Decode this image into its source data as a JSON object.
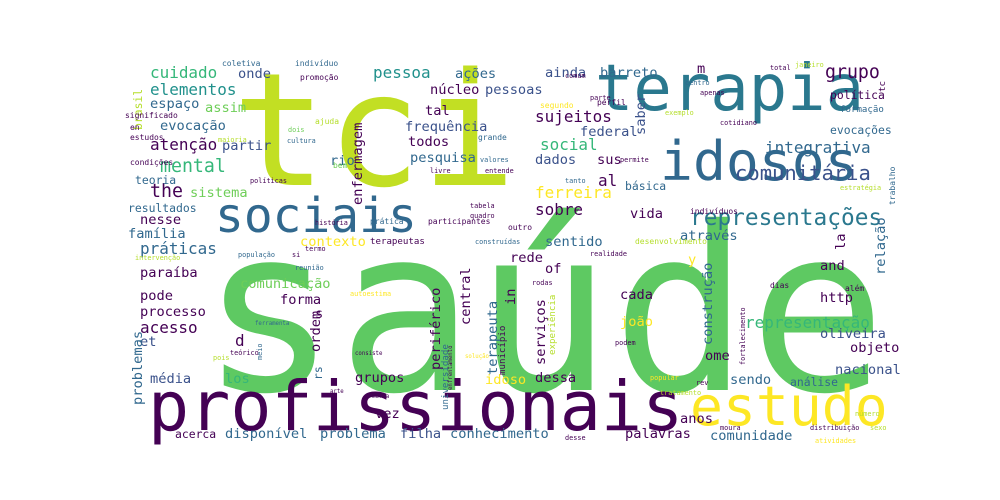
{
  "chart_data": {
    "type": "wordcloud",
    "words": [
      {
        "text": "saúde",
        "weight": 100,
        "color": "#5ec962"
      },
      {
        "text": "profissionais",
        "weight": 30,
        "color": "#440154"
      },
      {
        "text": "tci",
        "weight": 69,
        "color": "#c2df23"
      },
      {
        "text": "terapia",
        "weight": 28,
        "color": "#2a788e"
      },
      {
        "text": "idosos",
        "weight": 24,
        "color": "#31688e"
      },
      {
        "text": "sociais",
        "weight": 21,
        "color": "#31688e"
      },
      {
        "text": "estudo",
        "weight": 24,
        "color": "#fde725"
      },
      {
        "text": "representações",
        "weight": 10,
        "color": "#2a788e"
      },
      {
        "text": "comunitária",
        "weight": 9,
        "color": "#3b528b"
      },
      {
        "text": "integrativa",
        "weight": 7,
        "color": "#31688e"
      },
      {
        "text": "grupo",
        "weight": 8,
        "color": "#440154"
      },
      {
        "text": "cuidado",
        "weight": 7,
        "color": "#35b779"
      },
      {
        "text": "elementos",
        "weight": 7,
        "color": "#21918c"
      },
      {
        "text": "pessoa",
        "weight": 7,
        "color": "#21918c"
      },
      {
        "text": "ações",
        "weight": 6,
        "color": "#31688e"
      },
      {
        "text": "ainda",
        "weight": 6,
        "color": "#3b528b"
      },
      {
        "text": "barreto",
        "weight": 6,
        "color": "#31688e"
      },
      {
        "text": "m",
        "weight": 6,
        "color": "#440154"
      },
      {
        "text": "núcleo",
        "weight": 6,
        "color": "#440154"
      },
      {
        "text": "pessoas",
        "weight": 6,
        "color": "#3b528b"
      },
      {
        "text": "espaço",
        "weight": 6,
        "color": "#31688e"
      },
      {
        "text": "assim",
        "weight": 6,
        "color": "#6ece58"
      },
      {
        "text": "evocação",
        "weight": 6,
        "color": "#31688e"
      },
      {
        "text": "atenção",
        "weight": 7,
        "color": "#440154"
      },
      {
        "text": "partir",
        "weight": 6,
        "color": "#3b528b"
      },
      {
        "text": "mental",
        "weight": 8,
        "color": "#35b779"
      },
      {
        "text": "the",
        "weight": 8,
        "color": "#440154"
      },
      {
        "text": "teoria",
        "weight": 5,
        "color": "#31688e"
      },
      {
        "text": "sistema",
        "weight": 6,
        "color": "#6ece58"
      },
      {
        "text": "resultados",
        "weight": 5,
        "color": "#31688e"
      },
      {
        "text": "nesse",
        "weight": 6,
        "color": "#440154"
      },
      {
        "text": "família",
        "weight": 6,
        "color": "#31688e"
      },
      {
        "text": "práticas",
        "weight": 7,
        "color": "#31688e"
      },
      {
        "text": "paraíba",
        "weight": 6,
        "color": "#440154"
      },
      {
        "text": "pode",
        "weight": 6,
        "color": "#440154"
      },
      {
        "text": "processo",
        "weight": 6,
        "color": "#440154"
      },
      {
        "text": "acesso",
        "weight": 7,
        "color": "#440154"
      },
      {
        "text": "et",
        "weight": 6,
        "color": "#3b528b"
      },
      {
        "text": "média",
        "weight": 6,
        "color": "#3b528b"
      },
      {
        "text": "acerca",
        "weight": 5,
        "color": "#440154"
      },
      {
        "text": "disponível",
        "weight": 6,
        "color": "#31688e"
      },
      {
        "text": "problema",
        "weight": 6,
        "color": "#31688e"
      },
      {
        "text": "filha",
        "weight": 6,
        "color": "#3b528b"
      },
      {
        "text": "conhecimento",
        "weight": 6,
        "color": "#31688e"
      },
      {
        "text": "palavras",
        "weight": 6,
        "color": "#440154"
      },
      {
        "text": "comunidade",
        "weight": 6,
        "color": "#31688e"
      },
      {
        "text": "anos",
        "weight": 6,
        "color": "#440154"
      },
      {
        "text": "los",
        "weight": 6,
        "color": "#35b779"
      },
      {
        "text": "d",
        "weight": 7,
        "color": "#440154"
      },
      {
        "text": "grupos",
        "weight": 6,
        "color": "#440154"
      },
      {
        "text": "idoso",
        "weight": 6,
        "color": "#fde725"
      },
      {
        "text": "dessa",
        "weight": 6,
        "color": "#440154"
      },
      {
        "text": "nacional",
        "weight": 6,
        "color": "#3b528b"
      },
      {
        "text": "objeto",
        "weight": 6,
        "color": "#440154"
      },
      {
        "text": "oliveira",
        "weight": 6,
        "color": "#3b528b"
      },
      {
        "text": "representação",
        "weight": 7,
        "color": "#35b779"
      },
      {
        "text": "http",
        "weight": 6,
        "color": "#440154"
      },
      {
        "text": "and",
        "weight": 6,
        "color": "#440154"
      },
      {
        "text": "cada",
        "weight": 6,
        "color": "#440154"
      },
      {
        "text": "joão",
        "weight": 6,
        "color": "#fde725"
      },
      {
        "text": "sendo",
        "weight": 6,
        "color": "#31688e"
      },
      {
        "text": "análise",
        "weight": 5,
        "color": "#31688e"
      },
      {
        "text": "ome",
        "weight": 6,
        "color": "#440154"
      },
      {
        "text": "forma",
        "weight": 6,
        "color": "#440154"
      },
      {
        "text": "comunicação",
        "weight": 6,
        "color": "#6ece58"
      },
      {
        "text": "vez",
        "weight": 6,
        "color": "#440154"
      },
      {
        "text": "frequência",
        "weight": 6,
        "color": "#3b528b"
      },
      {
        "text": "todos",
        "weight": 6,
        "color": "#440154"
      },
      {
        "text": "pesquisa",
        "weight": 6,
        "color": "#31688e"
      },
      {
        "text": "sujeitos",
        "weight": 7,
        "color": "#440154"
      },
      {
        "text": "social",
        "weight": 7,
        "color": "#35b779"
      },
      {
        "text": "federal",
        "weight": 6,
        "color": "#3b528b"
      },
      {
        "text": "dados",
        "weight": 6,
        "color": "#3b528b"
      },
      {
        "text": "sus",
        "weight": 6,
        "color": "#440154"
      },
      {
        "text": "al",
        "weight": 7,
        "color": "#440154"
      },
      {
        "text": "básica",
        "weight": 5,
        "color": "#31688e"
      },
      {
        "text": "ferreira",
        "weight": 7,
        "color": "#fde725"
      },
      {
        "text": "sobre",
        "weight": 7,
        "color": "#440154"
      },
      {
        "text": "vida",
        "weight": 6,
        "color": "#440154"
      },
      {
        "text": "sentido",
        "weight": 6,
        "color": "#31688e"
      },
      {
        "text": "através",
        "weight": 6,
        "color": "#31688e"
      },
      {
        "text": "contexto",
        "weight": 6,
        "color": "#fde725"
      },
      {
        "text": "terapeutas",
        "weight": 4,
        "color": "#440154"
      },
      {
        "text": "rede",
        "weight": 6,
        "color": "#440154"
      },
      {
        "text": "of",
        "weight": 6,
        "color": "#440154"
      },
      {
        "text": "rio",
        "weight": 6,
        "color": "#31688e"
      },
      {
        "text": "onde",
        "weight": 6,
        "color": "#3b528b"
      },
      {
        "text": "tal",
        "weight": 6,
        "color": "#440154"
      },
      {
        "text": "política",
        "weight": 5,
        "color": "#440154"
      },
      {
        "text": "formação",
        "weight": 4,
        "color": "#31688e"
      },
      {
        "text": "evocações",
        "weight": 5,
        "color": "#31688e"
      },
      {
        "text": "s",
        "weight": 6,
        "color": "#440154"
      },
      {
        "text": "y",
        "weight": 6,
        "color": "#fde725"
      },
      {
        "text": "enfermagem",
        "weight": 6,
        "color": "#440154"
      },
      {
        "text": "brasil",
        "weight": 5,
        "color": "#b5de2b"
      },
      {
        "text": "problemas",
        "weight": 6,
        "color": "#31688e"
      },
      {
        "text": "ordem",
        "weight": 6,
        "color": "#440154"
      },
      {
        "text": "rs",
        "weight": 5,
        "color": "#31688e"
      },
      {
        "text": "la",
        "weight": 6,
        "color": "#440154"
      },
      {
        "text": "relação",
        "weight": 6,
        "color": "#31688e"
      },
      {
        "text": "saber",
        "weight": 6,
        "color": "#3b528b"
      },
      {
        "text": "tc",
        "weight": 4,
        "color": "#440154"
      },
      {
        "text": "in",
        "weight": 6,
        "color": "#440154"
      },
      {
        "text": "terapeuta",
        "weight": 6,
        "color": "#31688e"
      },
      {
        "text": "central",
        "weight": 6,
        "color": "#440154"
      },
      {
        "text": "periférico",
        "weight": 6,
        "color": "#440154"
      },
      {
        "text": "construção",
        "weight": 6,
        "color": "#31688e"
      },
      {
        "text": "serviços",
        "weight": 6,
        "color": "#440154"
      },
      {
        "text": "universidade",
        "weight": 4,
        "color": "#31688e"
      },
      {
        "text": "município",
        "weight": 4,
        "color": "#440154"
      },
      {
        "text": "experiência",
        "weight": 4,
        "color": "#b5de2b"
      },
      {
        "text": "coletiva",
        "weight": 3.5,
        "color": "#31688e"
      },
      {
        "text": "indivíduo",
        "weight": 3.5,
        "color": "#31688e"
      },
      {
        "text": "promoção",
        "weight": 3.5,
        "color": "#440154"
      },
      {
        "text": "total",
        "weight": 3,
        "color": "#440154"
      },
      {
        "text": "janeiro",
        "weight": 3,
        "color": "#b5de2b"
      },
      {
        "text": "significado",
        "weight": 3.5,
        "color": "#440154"
      },
      {
        "text": "en",
        "weight": 3.5,
        "color": "#440154"
      },
      {
        "text": "estudos",
        "weight": 3.5,
        "color": "#440154"
      },
      {
        "text": "condições",
        "weight": 3.5,
        "color": "#440154"
      },
      {
        "text": "maioria",
        "weight": 3,
        "color": "#b5de2b"
      },
      {
        "text": "dois",
        "weight": 3,
        "color": "#6ece58"
      },
      {
        "text": "cultura",
        "weight": 3,
        "color": "#31688e"
      },
      {
        "text": "ajuda",
        "weight": 3.5,
        "color": "#b5de2b"
      },
      {
        "text": "bem",
        "weight": 3.5,
        "color": "#6ece58"
      },
      {
        "text": "políticas",
        "weight": 3,
        "color": "#440154"
      },
      {
        "text": "história",
        "weight": 3,
        "color": "#440154"
      },
      {
        "text": "prática",
        "weight": 3.5,
        "color": "#31688e"
      },
      {
        "text": "participantes",
        "weight": 3.5,
        "color": "#440154"
      },
      {
        "text": "indivíduos",
        "weight": 3.5,
        "color": "#440154"
      },
      {
        "text": "tabela",
        "weight": 3,
        "color": "#440154"
      },
      {
        "text": "quadro",
        "weight": 3,
        "color": "#440154"
      },
      {
        "text": "termo",
        "weight": 3,
        "color": "#440154"
      },
      {
        "text": "população",
        "weight": 3,
        "color": "#31688e"
      },
      {
        "text": "si",
        "weight": 3,
        "color": "#440154"
      },
      {
        "text": "intervenção",
        "weight": 3,
        "color": "#b5de2b"
      },
      {
        "text": "reunião",
        "weight": 3,
        "color": "#31688e"
      },
      {
        "text": "teórico",
        "weight": 3,
        "color": "#440154"
      },
      {
        "text": "pois",
        "weight": 3,
        "color": "#b5de2b"
      },
      {
        "text": "meio",
        "weight": 3,
        "color": "#31688e"
      },
      {
        "text": "consiste",
        "weight": 2.5,
        "color": "#440154"
      },
      {
        "text": "solução",
        "weight": 2.5,
        "color": "#fde725"
      },
      {
        "text": "arte",
        "weight": 2.5,
        "color": "#440154"
      },
      {
        "text": "maria",
        "weight": 2.5,
        "color": "#440154"
      },
      {
        "text": "popular",
        "weight": 3,
        "color": "#fde725"
      },
      {
        "text": "rev",
        "weight": 3,
        "color": "#440154"
      },
      {
        "text": "moura",
        "weight": 3,
        "color": "#440154"
      },
      {
        "text": "atividades",
        "weight": 3,
        "color": "#fde725"
      },
      {
        "text": "sexo",
        "weight": 3,
        "color": "#b5de2b"
      },
      {
        "text": "número",
        "weight": 3,
        "color": "#b5de2b"
      },
      {
        "text": "dias",
        "weight": 3.5,
        "color": "#440154"
      },
      {
        "text": "além",
        "weight": 3.5,
        "color": "#440154"
      },
      {
        "text": "realidade",
        "weight": 3,
        "color": "#440154"
      },
      {
        "text": "desenvolvimento",
        "weight": 3.5,
        "color": "#b5de2b"
      },
      {
        "text": "outro",
        "weight": 3.5,
        "color": "#440154"
      },
      {
        "text": "rodas",
        "weight": 3,
        "color": "#440154"
      },
      {
        "text": "autoestima",
        "weight": 3,
        "color": "#fde725"
      },
      {
        "text": "ferramenta",
        "weight": 2.5,
        "color": "#31688e"
      },
      {
        "text": "construídas",
        "weight": 3,
        "color": "#31688e"
      },
      {
        "text": "comum",
        "weight": 3,
        "color": "#440154"
      },
      {
        "text": "apenas",
        "weight": 3,
        "color": "#440154"
      },
      {
        "text": "parte",
        "weight": 3,
        "color": "#440154"
      },
      {
        "text": "cotidiano",
        "weight": 3,
        "color": "#440154"
      },
      {
        "text": "permite",
        "weight": 3,
        "color": "#440154"
      },
      {
        "text": "tanto",
        "weight": 3,
        "color": "#31688e"
      },
      {
        "text": "entende",
        "weight": 3,
        "color": "#440154"
      },
      {
        "text": "livre",
        "weight": 3,
        "color": "#440154"
      },
      {
        "text": "valores",
        "weight": 3,
        "color": "#31688e"
      },
      {
        "text": "grande",
        "weight": 3.5,
        "color": "#31688e"
      },
      {
        "text": "segundo",
        "weight": 3.5,
        "color": "#fde725"
      },
      {
        "text": "perfil",
        "weight": 3.5,
        "color": "#440154"
      },
      {
        "text": "centro",
        "weight": 3,
        "color": "#31688e"
      },
      {
        "text": "exemplo",
        "weight": 3,
        "color": "#b5de2b"
      },
      {
        "text": "trabalho",
        "weight": 3.5,
        "color": "#31688e"
      },
      {
        "text": "estratégia",
        "weight": 3,
        "color": "#b5de2b"
      },
      {
        "text": "fortalecimento",
        "weight": 3,
        "color": "#440154"
      },
      {
        "text": "distribuição",
        "weight": 3,
        "color": "#440154"
      },
      {
        "text": "desse",
        "weight": 3,
        "color": "#440154"
      },
      {
        "text": "tratamento",
        "weight": 3,
        "color": "#b5de2b"
      },
      {
        "text": "podem",
        "weight": 3,
        "color": "#440154"
      },
      {
        "text": "enfrentamento",
        "weight": 2.5,
        "color": "#440154"
      }
    ]
  }
}
